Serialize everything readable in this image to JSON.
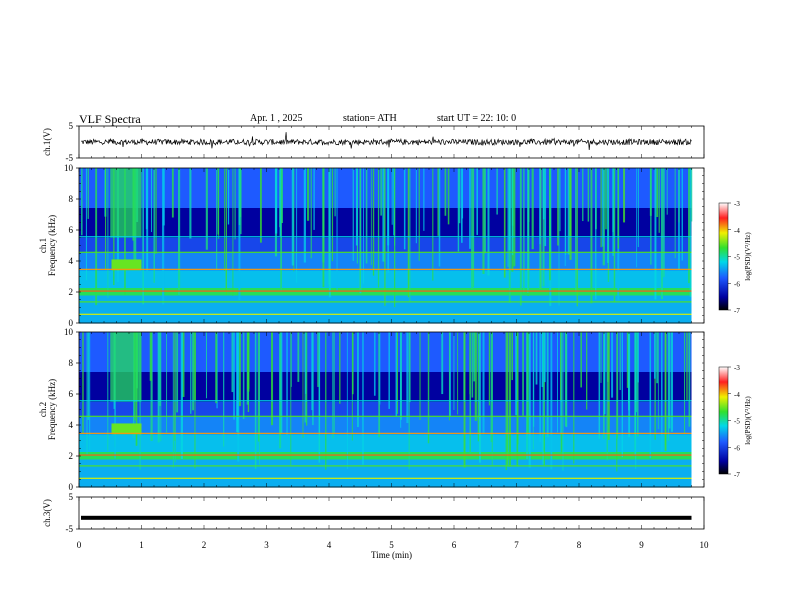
{
  "header": {
    "title": "VLF  Spectra",
    "date": "Apr. 1  , 2025",
    "station": "station= ATH",
    "start": "start  UT  =   22: 10: 0"
  },
  "chart_data": [
    {
      "type": "line",
      "panel": "ch1-waveform",
      "ylabel": "ch.1(V)",
      "ylim": [
        -5,
        5
      ],
      "yticks": [
        "5",
        "-5"
      ],
      "xlim": [
        0,
        10
      ],
      "series_note": "noisy waveform centered near 0 V with amplitude about ±1 V",
      "baseline": 0
    },
    {
      "type": "heatmap",
      "panel": "ch1-spectrogram",
      "ylabel": "ch.1\nFrequency  (kHz)",
      "ylim": [
        0,
        10
      ],
      "yticks": [
        "0",
        "2",
        "4",
        "6",
        "8",
        "10"
      ],
      "xlim": [
        0,
        9.8
      ],
      "colorbar": {
        "label": "log(PSD)(V²/Hz)",
        "range": [
          -7,
          -3
        ],
        "ticks": [
          "-3",
          "-4",
          "-5",
          "-6",
          "-7"
        ]
      }
    },
    {
      "type": "heatmap",
      "panel": "ch2-spectrogram",
      "ylabel": "ch.2\nFrequency  (kHz)",
      "ylim": [
        0,
        10
      ],
      "yticks": [
        "0",
        "2",
        "4",
        "6",
        "8",
        "10"
      ],
      "xlim": [
        0,
        9.8
      ],
      "colorbar": {
        "label": "log(PSD)(V²/Hz)",
        "range": [
          -7,
          -3
        ],
        "ticks": [
          "-3",
          "-4",
          "-5",
          "-6",
          "-7"
        ]
      }
    },
    {
      "type": "line",
      "panel": "ch3-waveform",
      "ylabel": "ch.3(V)",
      "ylim": [
        -5,
        5
      ],
      "yticks": [
        "5",
        "-5"
      ],
      "xlim": [
        0,
        10
      ],
      "baseline": -1.5,
      "series_note": "nearly flat thick trace at about -1.5 V"
    }
  ],
  "xaxis": {
    "label": "Time  (min)",
    "ticks": [
      "0",
      "1",
      "2",
      "3",
      "4",
      "5",
      "6",
      "7",
      "8",
      "9",
      "10"
    ],
    "range": [
      0,
      10
    ]
  }
}
